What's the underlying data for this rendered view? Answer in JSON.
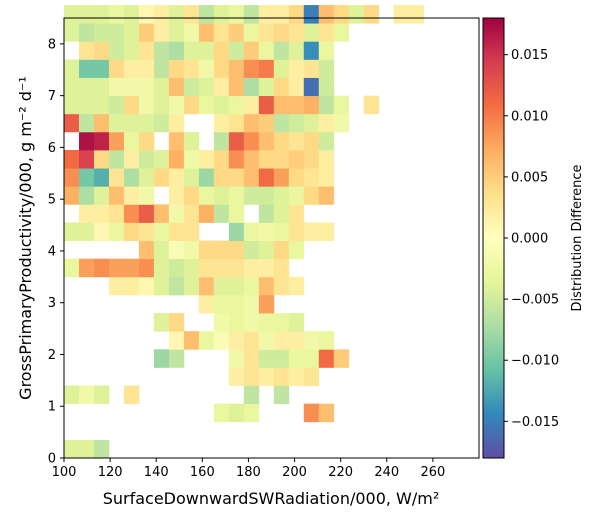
{
  "chart_data": {
    "type": "heatmap",
    "xlabel": "SurfaceDownwardSWRadiation/000,  W/m²",
    "ylabel": "GrossPrimaryProductivity/000,  g m⁻² d⁻¹",
    "colorbar_label": "Distribution Difference",
    "colormap": "Spectral_r",
    "xlim": [
      100,
      280
    ],
    "ylim": [
      0,
      8.5
    ],
    "cell_width": 6.5,
    "cell_height": 0.35,
    "color_range": [
      -0.018,
      0.018
    ],
    "x_ticks": [
      100,
      120,
      140,
      160,
      180,
      200,
      220,
      240,
      260
    ],
    "y_ticks": [
      0,
      1,
      2,
      3,
      4,
      5,
      6,
      7,
      8
    ],
    "colorbar_ticks": [
      0.015,
      0.01,
      0.005,
      0.0,
      -0.005,
      -0.01,
      -0.015
    ],
    "colorbar_tick_labels": [
      "0.015",
      "0.010",
      "0.005",
      "0.000",
      "−0.005",
      "−0.010",
      "−0.015"
    ],
    "cells": [
      [
        0,
        0,
        -0.004
      ],
      [
        0,
        1,
        -0.004
      ],
      [
        0,
        2,
        -0.006
      ],
      [
        2,
        10,
        -0.003
      ],
      [
        2,
        11,
        -0.004
      ],
      [
        2,
        12,
        -0.003
      ],
      [
        2,
        16,
        0.009
      ],
      [
        2,
        17,
        0.006
      ],
      [
        3,
        0,
        -0.004
      ],
      [
        3,
        1,
        -0.002
      ],
      [
        3,
        2,
        -0.004
      ],
      [
        3,
        4,
        0.003
      ],
      [
        3,
        12,
        -0.006
      ],
      [
        3,
        14,
        -0.006
      ],
      [
        4,
        11,
        0.002
      ],
      [
        4,
        12,
        0.003
      ],
      [
        4,
        13,
        0.002
      ],
      [
        4,
        14,
        0.003
      ],
      [
        4,
        15,
        0.002
      ],
      [
        4,
        16,
        0.003
      ],
      [
        5,
        6,
        -0.008
      ],
      [
        5,
        7,
        -0.006
      ],
      [
        5,
        11,
        -0.002
      ],
      [
        5,
        12,
        0.003
      ],
      [
        5,
        13,
        -0.005
      ],
      [
        5,
        14,
        -0.005
      ],
      [
        5,
        15,
        -0.003
      ],
      [
        5,
        16,
        -0.003
      ],
      [
        5,
        17,
        0.011
      ],
      [
        5,
        18,
        0.005
      ],
      [
        6,
        7,
        0.001
      ],
      [
        6,
        8,
        0.006
      ],
      [
        6,
        9,
        -0.003
      ],
      [
        6,
        10,
        -0.001
      ],
      [
        6,
        11,
        0.002
      ],
      [
        6,
        12,
        0.003
      ],
      [
        6,
        13,
        -0.002
      ],
      [
        6,
        14,
        0.002
      ],
      [
        6,
        15,
        0.002
      ],
      [
        6,
        16,
        -0.002
      ],
      [
        6,
        17,
        -0.003
      ],
      [
        7,
        6,
        -0.004
      ],
      [
        7,
        7,
        0.004
      ],
      [
        7,
        10,
        -0.002
      ],
      [
        7,
        11,
        -0.003
      ],
      [
        7,
        12,
        -0.002
      ],
      [
        7,
        13,
        -0.003
      ],
      [
        7,
        14,
        -0.003
      ],
      [
        7,
        15,
        -0.004
      ],
      [
        8,
        9,
        0.002
      ],
      [
        8,
        10,
        -0.003
      ],
      [
        8,
        11,
        -0.003
      ],
      [
        8,
        12,
        -0.002
      ],
      [
        8,
        13,
        0.008
      ],
      [
        9,
        3,
        0.002
      ],
      [
        9,
        4,
        0.002
      ],
      [
        9,
        5,
        0.001
      ],
      [
        9,
        6,
        -0.004
      ],
      [
        9,
        7,
        -0.006
      ],
      [
        9,
        8,
        -0.004
      ],
      [
        9,
        9,
        0.006
      ],
      [
        9,
        10,
        -0.004
      ],
      [
        9,
        11,
        -0.004
      ],
      [
        9,
        12,
        -0.003
      ],
      [
        9,
        13,
        0.006
      ],
      [
        9,
        14,
        0.003
      ],
      [
        9,
        15,
        0.002
      ],
      [
        10,
        0,
        -0.003
      ],
      [
        10,
        1,
        0.008
      ],
      [
        10,
        2,
        0.009
      ],
      [
        10,
        3,
        0.008
      ],
      [
        10,
        4,
        0.008
      ],
      [
        10,
        5,
        0.009
      ],
      [
        10,
        6,
        -0.004
      ],
      [
        10,
        7,
        -0.005
      ],
      [
        10,
        8,
        -0.004
      ],
      [
        10,
        9,
        0.003
      ],
      [
        10,
        10,
        0.003
      ],
      [
        10,
        11,
        0.003
      ],
      [
        10,
        12,
        0.002
      ],
      [
        10,
        13,
        0.002
      ],
      [
        10,
        14,
        0.003
      ],
      [
        11,
        5,
        0.006
      ],
      [
        11,
        6,
        -0.004
      ],
      [
        11,
        7,
        -0.001
      ],
      [
        11,
        8,
        -0.002
      ],
      [
        11,
        9,
        0.004
      ],
      [
        11,
        10,
        0.004
      ],
      [
        11,
        11,
        0.004
      ],
      [
        11,
        12,
        -0.005
      ],
      [
        11,
        13,
        -0.004
      ],
      [
        11,
        14,
        0.004
      ],
      [
        11,
        15,
        -0.003
      ],
      [
        12,
        0,
        -0.004
      ],
      [
        12,
        1,
        -0.004
      ],
      [
        12,
        2,
        0.001
      ],
      [
        12,
        3,
        -0.003
      ],
      [
        12,
        4,
        0.004
      ],
      [
        12,
        5,
        0.003
      ],
      [
        12,
        6,
        -0.003
      ],
      [
        12,
        7,
        0.003
      ],
      [
        12,
        8,
        0.003
      ],
      [
        12,
        11,
        -0.008
      ],
      [
        12,
        12,
        -0.003
      ],
      [
        12,
        13,
        -0.002
      ],
      [
        12,
        14,
        -0.003
      ],
      [
        12,
        15,
        0.003
      ],
      [
        12,
        16,
        0.002
      ],
      [
        12,
        17,
        0.002
      ],
      [
        13,
        1,
        0.002
      ],
      [
        13,
        2,
        0.002
      ],
      [
        13,
        3,
        0.003
      ],
      [
        13,
        4,
        0.009
      ],
      [
        13,
        5,
        0.012
      ],
      [
        13,
        6,
        0.006
      ],
      [
        13,
        7,
        -0.002
      ],
      [
        13,
        8,
        0.003
      ],
      [
        13,
        9,
        0.007
      ],
      [
        13,
        10,
        -0.006
      ],
      [
        13,
        11,
        -0.003
      ],
      [
        13,
        13,
        -0.006
      ],
      [
        13,
        14,
        -0.004
      ],
      [
        13,
        15,
        0.003
      ],
      [
        14,
        0,
        0.007
      ],
      [
        14,
        1,
        -0.007
      ],
      [
        14,
        2,
        -0.004
      ],
      [
        14,
        3,
        0.006
      ],
      [
        14,
        4,
        0.002
      ],
      [
        14,
        5,
        -0.002
      ],
      [
        14,
        7,
        0.002
      ],
      [
        14,
        8,
        0.004
      ],
      [
        14,
        9,
        -0.003
      ],
      [
        14,
        10,
        -0.004
      ],
      [
        14,
        11,
        -0.003
      ],
      [
        14,
        12,
        -0.005
      ],
      [
        14,
        13,
        -0.005
      ],
      [
        14,
        14,
        -0.004
      ],
      [
        14,
        15,
        -0.003
      ],
      [
        14,
        16,
        0.004
      ],
      [
        14,
        17,
        0.006
      ],
      [
        15,
        0,
        0.009
      ],
      [
        15,
        1,
        -0.01
      ],
      [
        15,
        2,
        -0.012
      ],
      [
        15,
        3,
        0.003
      ],
      [
        15,
        4,
        -0.007
      ],
      [
        15,
        5,
        -0.004
      ],
      [
        15,
        6,
        0.004
      ],
      [
        15,
        7,
        0.002
      ],
      [
        15,
        8,
        -0.004
      ],
      [
        15,
        9,
        -0.008
      ],
      [
        15,
        10,
        0.004
      ],
      [
        15,
        11,
        0.004
      ],
      [
        15,
        12,
        0.006
      ],
      [
        15,
        13,
        0.011
      ],
      [
        15,
        14,
        0.008
      ],
      [
        15,
        15,
        0.004
      ],
      [
        15,
        16,
        0.003
      ],
      [
        15,
        17,
        0.002
      ],
      [
        16,
        0,
        0.011
      ],
      [
        16,
        1,
        0.014
      ],
      [
        16,
        2,
        0.004
      ],
      [
        16,
        3,
        -0.006
      ],
      [
        16,
        4,
        0.002
      ],
      [
        16,
        5,
        -0.005
      ],
      [
        16,
        6,
        -0.004
      ],
      [
        16,
        7,
        0.007
      ],
      [
        16,
        8,
        -0.002
      ],
      [
        16,
        9,
        0.002
      ],
      [
        16,
        10,
        0.004
      ],
      [
        16,
        11,
        0.009
      ],
      [
        16,
        12,
        0.006
      ],
      [
        16,
        13,
        0.004
      ],
      [
        16,
        14,
        0.004
      ],
      [
        16,
        15,
        0.005
      ],
      [
        16,
        16,
        0.004
      ],
      [
        16,
        17,
        0.002
      ],
      [
        17,
        1,
        0.017
      ],
      [
        17,
        2,
        0.016
      ],
      [
        17,
        3,
        0.008
      ],
      [
        17,
        4,
        -0.003
      ],
      [
        17,
        5,
        0.004
      ],
      [
        17,
        7,
        0.006
      ],
      [
        17,
        8,
        -0.004
      ],
      [
        17,
        10,
        -0.006
      ],
      [
        17,
        11,
        0.012
      ],
      [
        17,
        12,
        0.009
      ],
      [
        17,
        13,
        0.006
      ],
      [
        17,
        14,
        0.004
      ],
      [
        17,
        15,
        0.003
      ],
      [
        17,
        16,
        0.004
      ],
      [
        17,
        17,
        -0.005
      ],
      [
        18,
        0,
        0.012
      ],
      [
        18,
        1,
        -0.006
      ],
      [
        18,
        2,
        0.006
      ],
      [
        18,
        3,
        -0.004
      ],
      [
        18,
        4,
        -0.004
      ],
      [
        18,
        5,
        -0.004
      ],
      [
        18,
        6,
        -0.005
      ],
      [
        18,
        7,
        0.002
      ],
      [
        18,
        10,
        0.002
      ],
      [
        18,
        11,
        0.003
      ],
      [
        18,
        12,
        0.006
      ],
      [
        18,
        13,
        0.005
      ],
      [
        18,
        14,
        -0.006
      ],
      [
        18,
        15,
        -0.005
      ],
      [
        18,
        16,
        -0.004
      ],
      [
        18,
        17,
        0.002
      ],
      [
        18,
        18,
        -0.002
      ],
      [
        19,
        0,
        -0.004
      ],
      [
        19,
        1,
        -0.004
      ],
      [
        19,
        2,
        -0.004
      ],
      [
        19,
        3,
        -0.005
      ],
      [
        19,
        4,
        0.004
      ],
      [
        19,
        5,
        -0.002
      ],
      [
        19,
        6,
        -0.004
      ],
      [
        19,
        7,
        -0.002
      ],
      [
        19,
        8,
        0.004
      ],
      [
        19,
        9,
        -0.003
      ],
      [
        19,
        10,
        -0.004
      ],
      [
        19,
        11,
        -0.003
      ],
      [
        19,
        12,
        0.002
      ],
      [
        19,
        13,
        0.012
      ],
      [
        19,
        14,
        0.006
      ],
      [
        19,
        15,
        0.006
      ],
      [
        19,
        16,
        0.007
      ],
      [
        19,
        17,
        -0.006
      ],
      [
        19,
        18,
        -0.003
      ],
      [
        19,
        20,
        0.003
      ],
      [
        20,
        0,
        -0.004
      ],
      [
        20,
        1,
        -0.004
      ],
      [
        20,
        2,
        -0.004
      ],
      [
        20,
        3,
        -0.002
      ],
      [
        20,
        4,
        -0.002
      ],
      [
        20,
        5,
        -0.002
      ],
      [
        20,
        6,
        -0.004
      ],
      [
        20,
        7,
        0.006
      ],
      [
        20,
        8,
        -0.005
      ],
      [
        20,
        9,
        -0.004
      ],
      [
        20,
        10,
        0.002
      ],
      [
        20,
        11,
        0.006
      ],
      [
        20,
        12,
        -0.007
      ],
      [
        20,
        13,
        -0.004
      ],
      [
        20,
        14,
        0.004
      ],
      [
        20,
        15,
        0.002
      ],
      [
        20,
        16,
        -0.016
      ],
      [
        20,
        17,
        -0.005
      ],
      [
        21,
        0,
        -0.004
      ],
      [
        21,
        1,
        -0.01
      ],
      [
        21,
        2,
        -0.01
      ],
      [
        21,
        3,
        0.004
      ],
      [
        21,
        4,
        0.002
      ],
      [
        21,
        5,
        0.002
      ],
      [
        21,
        6,
        -0.006
      ],
      [
        21,
        7,
        0.004
      ],
      [
        21,
        8,
        0.003
      ],
      [
        21,
        9,
        -0.002
      ],
      [
        21,
        10,
        0.004
      ],
      [
        21,
        11,
        0.006
      ],
      [
        21,
        12,
        0.009
      ],
      [
        21,
        13,
        0.01
      ],
      [
        21,
        14,
        -0.004
      ],
      [
        21,
        15,
        0.002
      ],
      [
        21,
        16,
        0.003
      ],
      [
        21,
        17,
        -0.005
      ],
      [
        22,
        1,
        0.003
      ],
      [
        22,
        2,
        0.004
      ],
      [
        22,
        3,
        -0.005
      ],
      [
        22,
        4,
        -0.004
      ],
      [
        22,
        5,
        0.003
      ],
      [
        22,
        6,
        -0.006
      ],
      [
        22,
        7,
        -0.007
      ],
      [
        22,
        8,
        -0.004
      ],
      [
        22,
        9,
        -0.004
      ],
      [
        22,
        10,
        0.004
      ],
      [
        22,
        11,
        -0.005
      ],
      [
        22,
        12,
        0.005
      ],
      [
        22,
        13,
        -0.003
      ],
      [
        22,
        14,
        -0.006
      ],
      [
        22,
        15,
        -0.004
      ],
      [
        22,
        16,
        -0.014
      ],
      [
        22,
        17,
        -0.003
      ],
      [
        23,
        0,
        -0.004
      ],
      [
        23,
        1,
        -0.006
      ],
      [
        23,
        2,
        -0.005
      ],
      [
        23,
        3,
        -0.005
      ],
      [
        23,
        4,
        -0.004
      ],
      [
        23,
        5,
        0.005
      ],
      [
        23,
        6,
        0.002
      ],
      [
        23,
        7,
        -0.004
      ],
      [
        23,
        8,
        -0.002
      ],
      [
        23,
        9,
        0.006
      ],
      [
        23,
        10,
        0.003
      ],
      [
        23,
        11,
        0.005
      ],
      [
        23,
        12,
        -0.003
      ],
      [
        23,
        13,
        0.003
      ],
      [
        23,
        14,
        0.004
      ],
      [
        23,
        15,
        0.003
      ],
      [
        23,
        16,
        -0.004
      ],
      [
        23,
        17,
        0.003
      ],
      [
        23,
        18,
        -0.003
      ],
      [
        24,
        0,
        -0.004
      ],
      [
        24,
        1,
        -0.004
      ],
      [
        24,
        2,
        -0.004
      ],
      [
        24,
        3,
        -0.003
      ],
      [
        24,
        4,
        -0.004
      ],
      [
        24,
        5,
        0.001
      ],
      [
        24,
        6,
        0.002
      ],
      [
        24,
        7,
        -0.004
      ],
      [
        24,
        8,
        0.003
      ],
      [
        24,
        9,
        -0.006
      ],
      [
        24,
        10,
        -0.004
      ],
      [
        24,
        11,
        -0.003
      ],
      [
        24,
        12,
        -0.006
      ],
      [
        24,
        13,
        0.002
      ],
      [
        24,
        14,
        0.002
      ],
      [
        24,
        15,
        0.004
      ],
      [
        24,
        16,
        -0.015
      ],
      [
        24,
        17,
        0.006
      ],
      [
        24,
        18,
        0.004
      ],
      [
        24,
        19,
        -0.004
      ],
      [
        24,
        20,
        0.004
      ],
      [
        24,
        22,
        0.002
      ],
      [
        24,
        23,
        0.002
      ]
    ]
  }
}
